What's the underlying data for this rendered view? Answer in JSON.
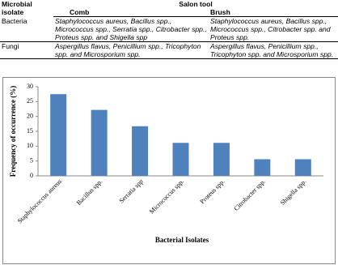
{
  "table": {
    "header": {
      "isolate": "Microbial isolate",
      "tool": "Salon tool",
      "comb": "Comb",
      "brush": "Brush"
    },
    "rows": [
      [
        "Bacteria",
        "Staphylococcus aureus, Bacillus spp., Micrococcus spp., Serratia spp., Citrobacter spp., Proteus spp. and Shigella spp",
        "Staphylococcus aureus, Bacillus spp., Micrococcus spp., Citrobacter spp. and Proteus spp."
      ],
      [
        "Fungi",
        "Aspergillus flavus, Penicillium spp., Tricophyton spp. and Microsporium spp.",
        "Aspergillus flavus, Penicillium spp., Tricophyton spp. and Microsporium spp."
      ]
    ]
  },
  "chart_data": {
    "type": "bar",
    "x_label": "Bacterial Isolates",
    "y_label": "Frequency of occurrence (%)",
    "categories": [
      "Staphylococcus aureus",
      "Bacillus spp.",
      "Serratia spp",
      "Micrococcus spp.",
      "Proteus spp.",
      "Citrobacter spp.",
      "Shigella spp."
    ],
    "values": [
      27.5,
      22.2,
      16.7,
      11.1,
      11.1,
      5.6,
      5.6
    ],
    "color": "#4f81bd",
    "ylim": [
      0,
      30
    ],
    "yticks": [
      0,
      5,
      10,
      15,
      20,
      25,
      30
    ],
    "grid": false
  }
}
